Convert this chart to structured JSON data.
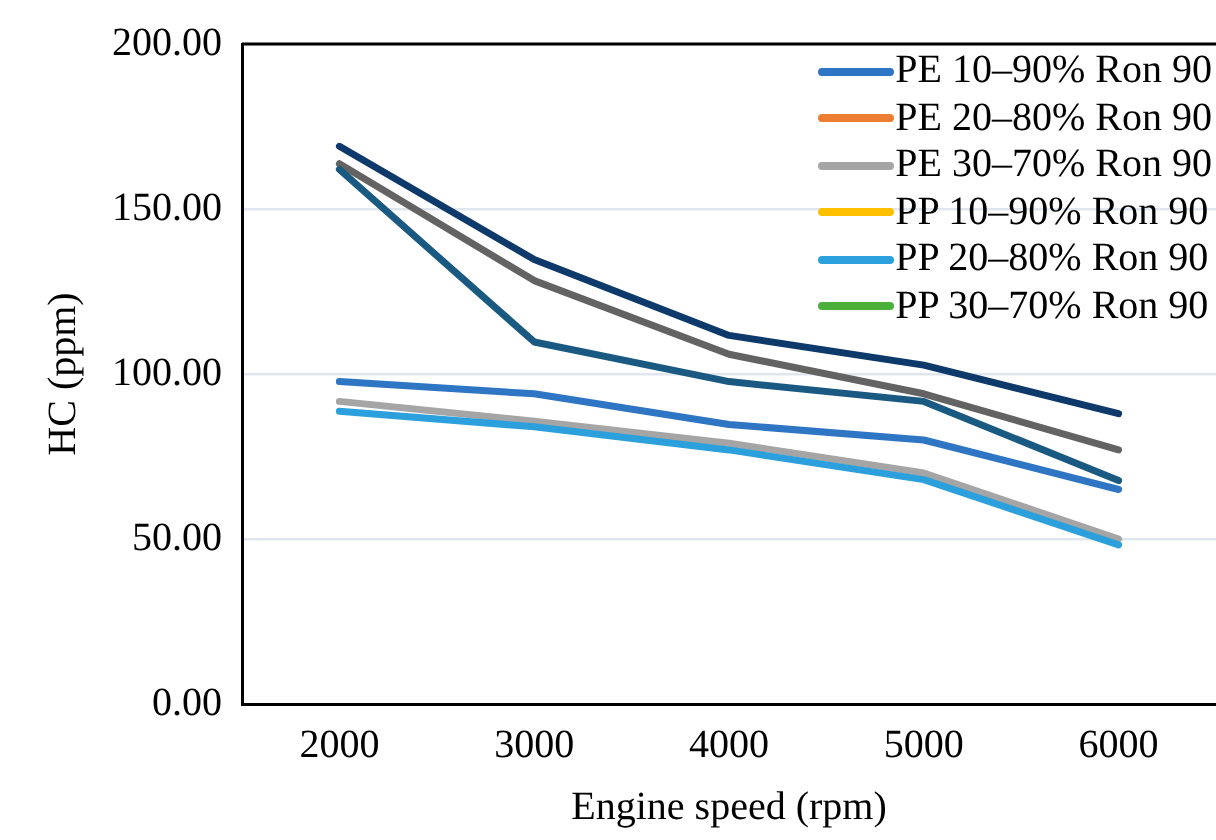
{
  "chart_data": {
    "type": "line",
    "xlabel": "Engine speed (rpm)",
    "ylabel": "HC (ppm)",
    "categories": [
      "2000",
      "3000",
      "4000",
      "5000",
      "6000"
    ],
    "series": [
      {
        "name": "PE 10–90% Ron 90",
        "color": "#2e75c4",
        "values": [
          97.7,
          94,
          84.7,
          80,
          65
        ]
      },
      {
        "name": "PE 20–80% Ron 90",
        "color": "#ed7d31",
        "values": [
          null,
          null,
          null,
          null,
          null
        ]
      },
      {
        "name": "PE 30–70% Ron 90",
        "color": "#a5a5a5",
        "values": [
          91.7,
          85.7,
          79,
          70,
          50
        ]
      },
      {
        "name": "PP 10–90% Ron 90",
        "color": "#ffc000",
        "values": [
          null,
          null,
          null,
          null,
          null
        ]
      },
      {
        "name": "PP 20–80% Ron 90",
        "color": "#2ca0dc",
        "values": [
          88.7,
          84,
          77,
          68,
          48.2
        ]
      },
      {
        "name": "PP 30–70% Ron 90",
        "color": "#4caf3a",
        "values": [
          null,
          null,
          null,
          null,
          null
        ]
      },
      {
        "color": "#0e3a6b",
        "values": [
          169,
          134.7,
          111.7,
          102.7,
          88
        ]
      },
      {
        "color": "#636363",
        "values": [
          163.7,
          128.3,
          106,
          94,
          77
        ]
      },
      {
        "color": "#1a5a82",
        "values": [
          162,
          109.7,
          97.7,
          91.7,
          67.7
        ]
      }
    ],
    "ylim": [
      0,
      200
    ],
    "yticks": [
      {
        "value": 0,
        "label": "0.00"
      },
      {
        "value": 50,
        "label": "50.00"
      },
      {
        "value": 100,
        "label": "100.00"
      },
      {
        "value": 150,
        "label": "150.00"
      },
      {
        "value": 200,
        "label": "200.00"
      }
    ],
    "grid": "y",
    "legend": "top right",
    "marker": "none",
    "line_style": "solid"
  }
}
